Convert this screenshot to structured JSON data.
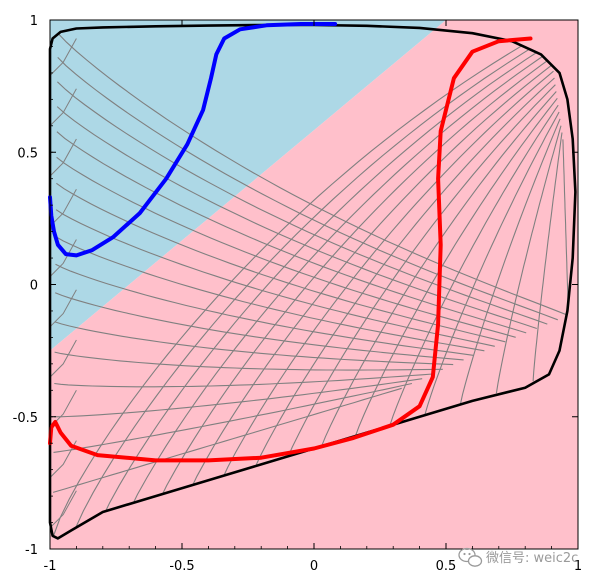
{
  "chart_data": {
    "type": "line",
    "title": "",
    "xlabel": "",
    "ylabel": "",
    "xlim": [
      -1,
      1
    ],
    "ylim": [
      -1,
      1
    ],
    "x_ticks": [
      -1,
      -0.5,
      0,
      0.5,
      1
    ],
    "y_ticks": [
      -1,
      -0.5,
      0,
      0.5,
      1
    ],
    "x_tick_labels": [
      "-1",
      "-0.5",
      "0",
      "0.5",
      "1"
    ],
    "y_tick_labels": [
      "-1",
      "-0.5",
      "0",
      "0.5",
      "1"
    ],
    "grid": false,
    "colors": {
      "region_upper": "#add8e6",
      "region_lower": "#ffc0cb",
      "mesh": "#808080",
      "boundary": "#000000",
      "series_blue": "#0000ff",
      "series_red": "#ff0000"
    },
    "regions": [
      {
        "color": "light-blue",
        "polygon": [
          [
            -1,
            1
          ],
          [
            0.5,
            1
          ],
          [
            -1,
            -0.25
          ]
        ]
      },
      {
        "color": "pink",
        "polygon": [
          [
            -1,
            -1
          ],
          [
            1,
            -1
          ],
          [
            1,
            1
          ],
          [
            0.5,
            1
          ],
          [
            -1,
            -0.25
          ]
        ]
      }
    ],
    "boundary": [
      [
        -1.0,
        0.89
      ],
      [
        -0.99,
        0.93
      ],
      [
        -0.96,
        0.955
      ],
      [
        -0.9,
        0.968
      ],
      [
        -0.8,
        0.972
      ],
      [
        -0.6,
        0.976
      ],
      [
        -0.4,
        0.979
      ],
      [
        -0.2,
        0.981
      ],
      [
        0.0,
        0.981
      ],
      [
        0.2,
        0.978
      ],
      [
        0.4,
        0.97
      ],
      [
        0.6,
        0.95
      ],
      [
        0.75,
        0.92
      ],
      [
        0.86,
        0.87
      ],
      [
        0.93,
        0.8
      ],
      [
        0.96,
        0.7
      ],
      [
        0.98,
        0.55
      ],
      [
        0.99,
        0.35
      ],
      [
        0.98,
        0.1
      ],
      [
        0.96,
        -0.1
      ],
      [
        0.93,
        -0.25
      ],
      [
        0.89,
        -0.34
      ],
      [
        0.8,
        -0.39
      ],
      [
        0.6,
        -0.44
      ],
      [
        0.4,
        -0.5
      ],
      [
        0.2,
        -0.56
      ],
      [
        0.0,
        -0.62
      ],
      [
        -0.2,
        -0.68
      ],
      [
        -0.4,
        -0.74
      ],
      [
        -0.6,
        -0.8
      ],
      [
        -0.8,
        -0.86
      ],
      [
        -0.92,
        -0.93
      ],
      [
        -0.97,
        -0.96
      ],
      [
        -0.99,
        -0.95
      ],
      [
        -1.0,
        -0.9
      ],
      [
        -1.0,
        -0.6
      ],
      [
        -1.0,
        0.0
      ],
      [
        -1.0,
        0.5
      ],
      [
        -1.0,
        0.89
      ]
    ],
    "series": [
      {
        "color": "blue",
        "points": [
          [
            -1.0,
            0.33
          ],
          [
            -0.995,
            0.26
          ],
          [
            -0.985,
            0.2
          ],
          [
            -0.97,
            0.15
          ],
          [
            -0.94,
            0.115
          ],
          [
            -0.9,
            0.11
          ],
          [
            -0.84,
            0.13
          ],
          [
            -0.76,
            0.18
          ],
          [
            -0.66,
            0.27
          ],
          [
            -0.56,
            0.4
          ],
          [
            -0.48,
            0.53
          ],
          [
            -0.42,
            0.66
          ],
          [
            -0.39,
            0.78
          ],
          [
            -0.37,
            0.87
          ],
          [
            -0.34,
            0.93
          ],
          [
            -0.28,
            0.965
          ],
          [
            -0.18,
            0.98
          ],
          [
            -0.05,
            0.985
          ],
          [
            0.08,
            0.985
          ]
        ]
      },
      {
        "color": "red",
        "points": [
          [
            -1.0,
            -0.6
          ],
          [
            -0.995,
            -0.54
          ],
          [
            -0.98,
            -0.52
          ],
          [
            -0.96,
            -0.56
          ],
          [
            -0.92,
            -0.61
          ],
          [
            -0.82,
            -0.645
          ],
          [
            -0.6,
            -0.665
          ],
          [
            -0.4,
            -0.665
          ],
          [
            -0.2,
            -0.655
          ],
          [
            0.0,
            -0.62
          ],
          [
            0.15,
            -0.58
          ],
          [
            0.3,
            -0.53
          ],
          [
            0.4,
            -0.46
          ],
          [
            0.45,
            -0.35
          ],
          [
            0.47,
            -0.15
          ],
          [
            0.48,
            0.15
          ],
          [
            0.47,
            0.4
          ],
          [
            0.48,
            0.58
          ],
          [
            0.53,
            0.78
          ],
          [
            0.6,
            0.88
          ],
          [
            0.7,
            0.92
          ],
          [
            0.82,
            0.93
          ]
        ]
      }
    ]
  },
  "watermark": {
    "icon": "wechat-icon",
    "text": "微信号: weic2c"
  }
}
